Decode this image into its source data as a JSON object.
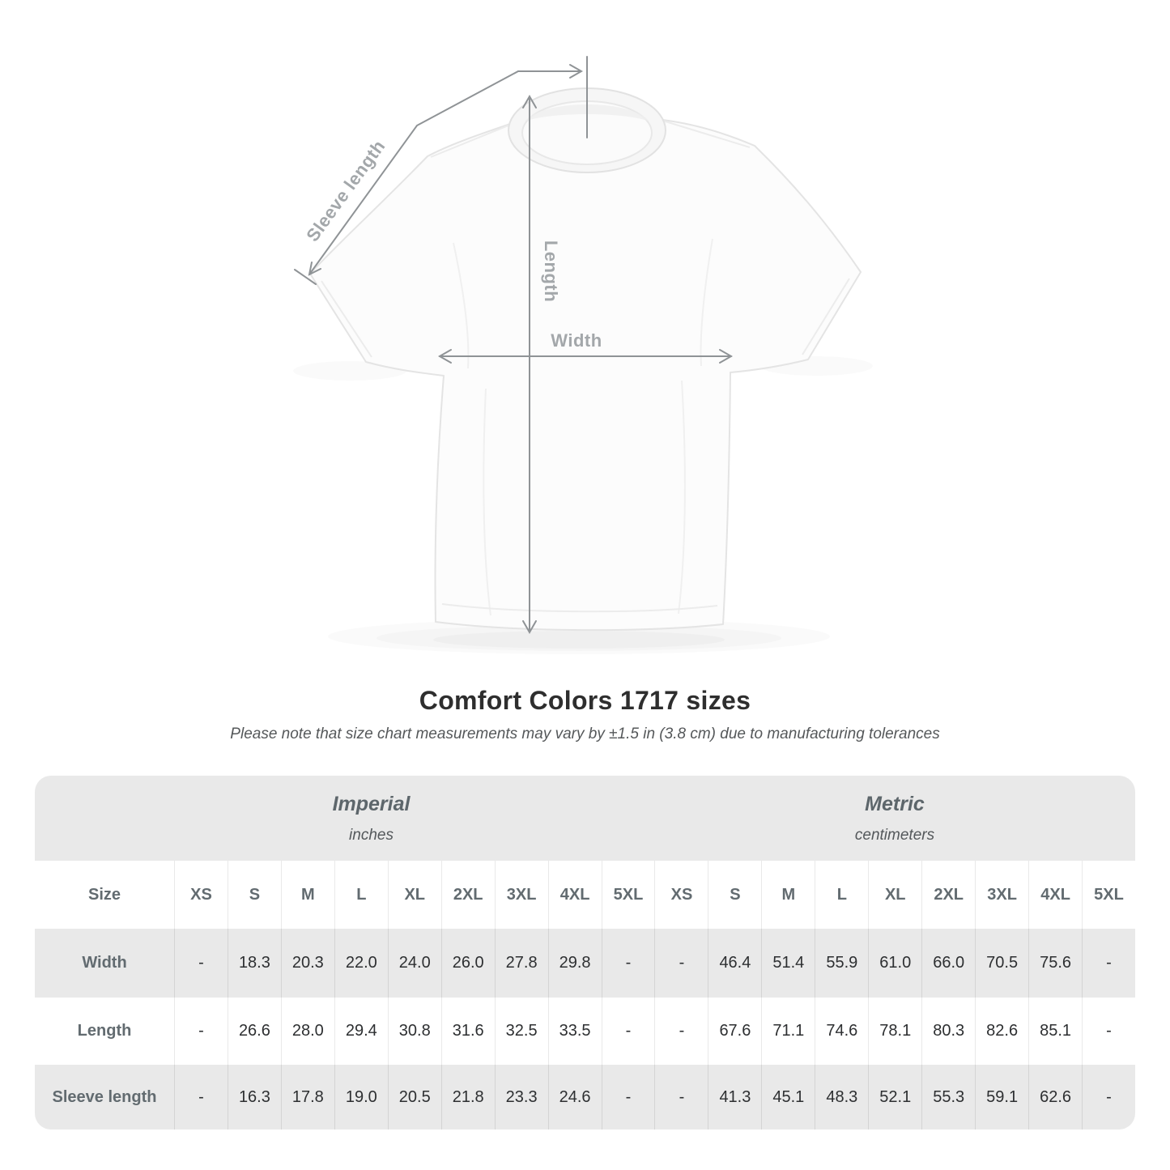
{
  "figure": {
    "sleeve_label": "Sleeve length",
    "length_label": "Length",
    "width_label": "Width"
  },
  "title": "Comfort Colors 1717 sizes",
  "subtitle": "Please note that size chart measurements may vary by ±1.5 in (3.8 cm) due to manufacturing tolerances",
  "table": {
    "size_header": "Size",
    "groups": [
      {
        "name": "Imperial",
        "unit": "inches"
      },
      {
        "name": "Metric",
        "unit": "centimeters"
      }
    ],
    "sizes": [
      "XS",
      "S",
      "M",
      "L",
      "XL",
      "2XL",
      "3XL",
      "4XL",
      "5XL"
    ],
    "rows": [
      {
        "label": "Width",
        "imperial": [
          "-",
          "18.3",
          "20.3",
          "22.0",
          "24.0",
          "26.0",
          "27.8",
          "29.8",
          "-"
        ],
        "metric": [
          "-",
          "46.4",
          "51.4",
          "55.9",
          "61.0",
          "66.0",
          "70.5",
          "75.6",
          "-"
        ]
      },
      {
        "label": "Length",
        "imperial": [
          "-",
          "26.6",
          "28.0",
          "29.4",
          "30.8",
          "31.6",
          "32.5",
          "33.5",
          "-"
        ],
        "metric": [
          "-",
          "67.6",
          "71.1",
          "74.6",
          "78.1",
          "80.3",
          "82.6",
          "85.1",
          "-"
        ]
      },
      {
        "label": "Sleeve length",
        "imperial": [
          "-",
          "16.3",
          "17.8",
          "19.0",
          "20.5",
          "21.8",
          "23.3",
          "24.6",
          "-"
        ],
        "metric": [
          "-",
          "41.3",
          "45.1",
          "48.3",
          "52.1",
          "55.3",
          "59.1",
          "62.6",
          "-"
        ]
      }
    ]
  },
  "chart_data": {
    "type": "table",
    "title": "Comfort Colors 1717 sizes",
    "unit_groups": [
      "Imperial (inches)",
      "Metric (centimeters)"
    ],
    "columns": [
      "XS",
      "S",
      "M",
      "L",
      "XL",
      "2XL",
      "3XL",
      "4XL",
      "5XL"
    ],
    "rows": [
      {
        "label": "Width",
        "imperial": [
          null,
          18.3,
          20.3,
          22.0,
          24.0,
          26.0,
          27.8,
          29.8,
          null
        ],
        "metric": [
          null,
          46.4,
          51.4,
          55.9,
          61.0,
          66.0,
          70.5,
          75.6,
          null
        ]
      },
      {
        "label": "Length",
        "imperial": [
          null,
          26.6,
          28.0,
          29.4,
          30.8,
          31.6,
          32.5,
          33.5,
          null
        ],
        "metric": [
          null,
          67.6,
          71.1,
          74.6,
          78.1,
          80.3,
          82.6,
          85.1,
          null
        ]
      },
      {
        "label": "Sleeve length",
        "imperial": [
          null,
          16.3,
          17.8,
          19.0,
          20.5,
          21.8,
          23.3,
          24.6,
          null
        ],
        "metric": [
          null,
          41.3,
          45.1,
          48.3,
          52.1,
          55.3,
          59.1,
          62.6,
          null
        ]
      }
    ]
  },
  "colors": {
    "band_background": "#e9e9e9",
    "stripe_gray": "#e9e9e9",
    "arrow_gray": "#8f9396",
    "label_gray": "#a3a7aa",
    "title_text": "#2e2e2e"
  }
}
